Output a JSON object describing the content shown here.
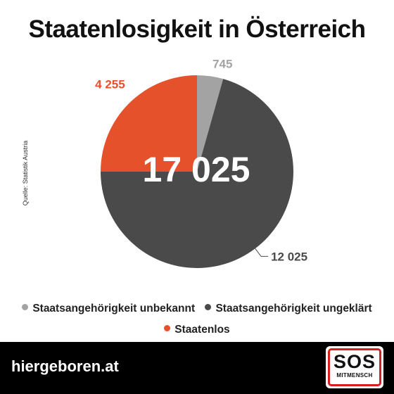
{
  "title": "Staatenlosigkeit in Österreich",
  "source": "Quelle: Statistik Austria",
  "total_label": "17 025",
  "colors": {
    "unbekannt": "#a3a3a3",
    "ungeklaert": "#4a4a4a",
    "staatenlos": "#e4512b",
    "title": "#111111",
    "footer": "#000000",
    "logo_border": "#d51e1e"
  },
  "chart_data": {
    "type": "pie",
    "title": "Staatenlosigkeit in Österreich",
    "total": 17025,
    "slices": [
      {
        "name": "Staatsangehörigkeit unbekannt",
        "value": 745,
        "label": "745",
        "color": "#a3a3a3"
      },
      {
        "name": "Staatsangehörigkeit ungeklärt",
        "value": 12025,
        "label": "12 025",
        "color": "#4a4a4a"
      },
      {
        "name": "Staatenlos",
        "value": 4255,
        "label": "4 255",
        "color": "#e4512b"
      }
    ],
    "legend_position": "bottom",
    "start_angle": "top, clockwise"
  },
  "legend": {
    "items": [
      {
        "label": "Staatsangehörigkeit unbekannt",
        "color": "#a3a3a3"
      },
      {
        "label": "Staatsangehörigkeit ungeklärt",
        "color": "#4a4a4a"
      },
      {
        "label": "Staatenlos",
        "color": "#e4512b"
      }
    ]
  },
  "footer": {
    "url": "hiergeboren.at",
    "logo_text": "SOS",
    "logo_subtext": "MITMENSCH"
  }
}
